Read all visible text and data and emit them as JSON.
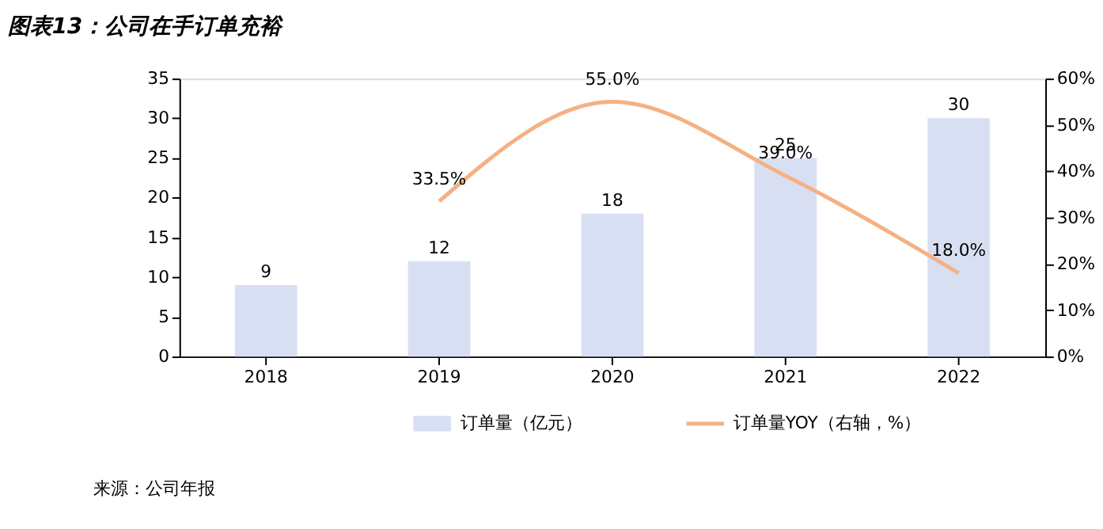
{
  "chart_data": {
    "type": "bar",
    "title": "图表13：公司在手订单充裕",
    "categories": [
      "2018",
      "2019",
      "2020",
      "2021",
      "2022"
    ],
    "series": [
      {
        "name": "订单量（亿元）",
        "color": "#d9dff3",
        "values": [
          9,
          12,
          18,
          25,
          30
        ],
        "data_labels": true
      },
      {
        "name": "订单量YOY（右轴，%）",
        "type": "line",
        "axis": "y2",
        "color": "#f4b183",
        "values": [
          null,
          33.5,
          55.0,
          39.0,
          18.0
        ],
        "value_labels": [
          null,
          "33.5%",
          "55.0%",
          "39.0%",
          "18.0%"
        ]
      }
    ],
    "ylim": [
      0,
      35
    ],
    "yticks": [
      0,
      5,
      10,
      15,
      20,
      25,
      30,
      35
    ],
    "y2lim": [
      0,
      60
    ],
    "y2ticks": [
      {
        "value": 0,
        "label": "0%"
      },
      {
        "value": 10,
        "label": "10%"
      },
      {
        "value": 20,
        "label": "20%"
      },
      {
        "value": 30,
        "label": "30%"
      },
      {
        "value": 40,
        "label": "40%"
      },
      {
        "value": 50,
        "label": "50%"
      },
      {
        "value": 60,
        "label": "60%"
      }
    ],
    "legend": "bottom",
    "grid": false,
    "annotations": [
      "来源：公司年报"
    ]
  }
}
